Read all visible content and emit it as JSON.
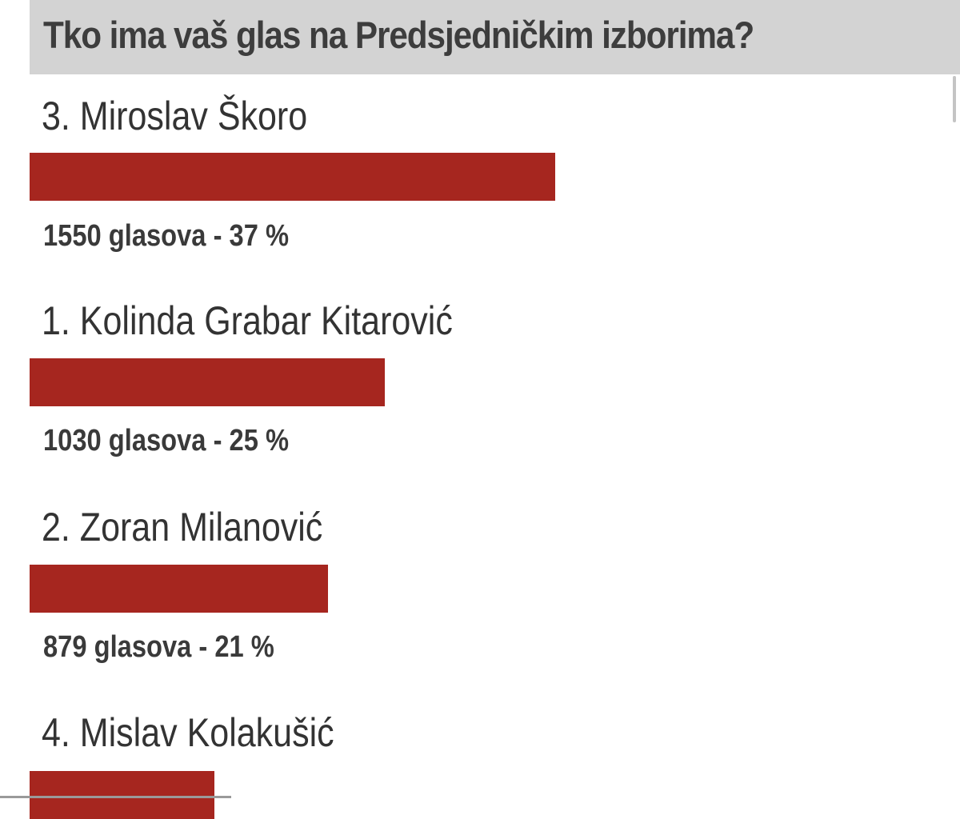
{
  "poll": {
    "title": "Tko ima vaš glas na Predsjedničkim izborima?",
    "bar_color": "#a6261f",
    "header_color": "#d3d3d3",
    "options": [
      {
        "name": "3. Miroslav Škoro",
        "result": "1550 glasova - 37 %",
        "votes": 1550,
        "percent": 37
      },
      {
        "name": "1. Kolinda Grabar Kitarović",
        "result": "1030 glasova - 25 %",
        "votes": 1030,
        "percent": 25
      },
      {
        "name": "2. Zoran Milanović",
        "result": "879 glasova - 21 %",
        "votes": 879,
        "percent": 21
      },
      {
        "name": "4. Mislav Kolakušić",
        "percent": 13
      }
    ]
  }
}
